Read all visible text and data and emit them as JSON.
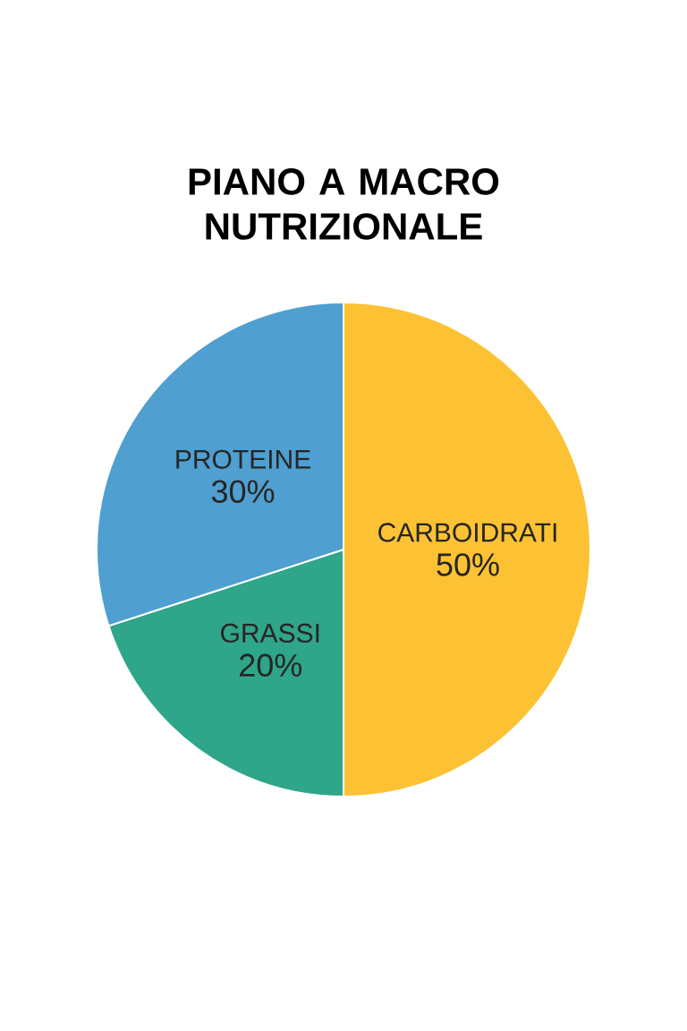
{
  "chart_data": {
    "type": "pie",
    "title": "PIANO A MACRO NUTRIZIONALE",
    "categories": [
      "CARBOIDRATI",
      "GRASSI",
      "PROTEINE"
    ],
    "values": [
      50,
      20,
      30
    ],
    "colors": [
      "#fcc233",
      "#2fa58a",
      "#4f9fd0"
    ],
    "value_labels": [
      "50%",
      "20%",
      "30%"
    ]
  }
}
